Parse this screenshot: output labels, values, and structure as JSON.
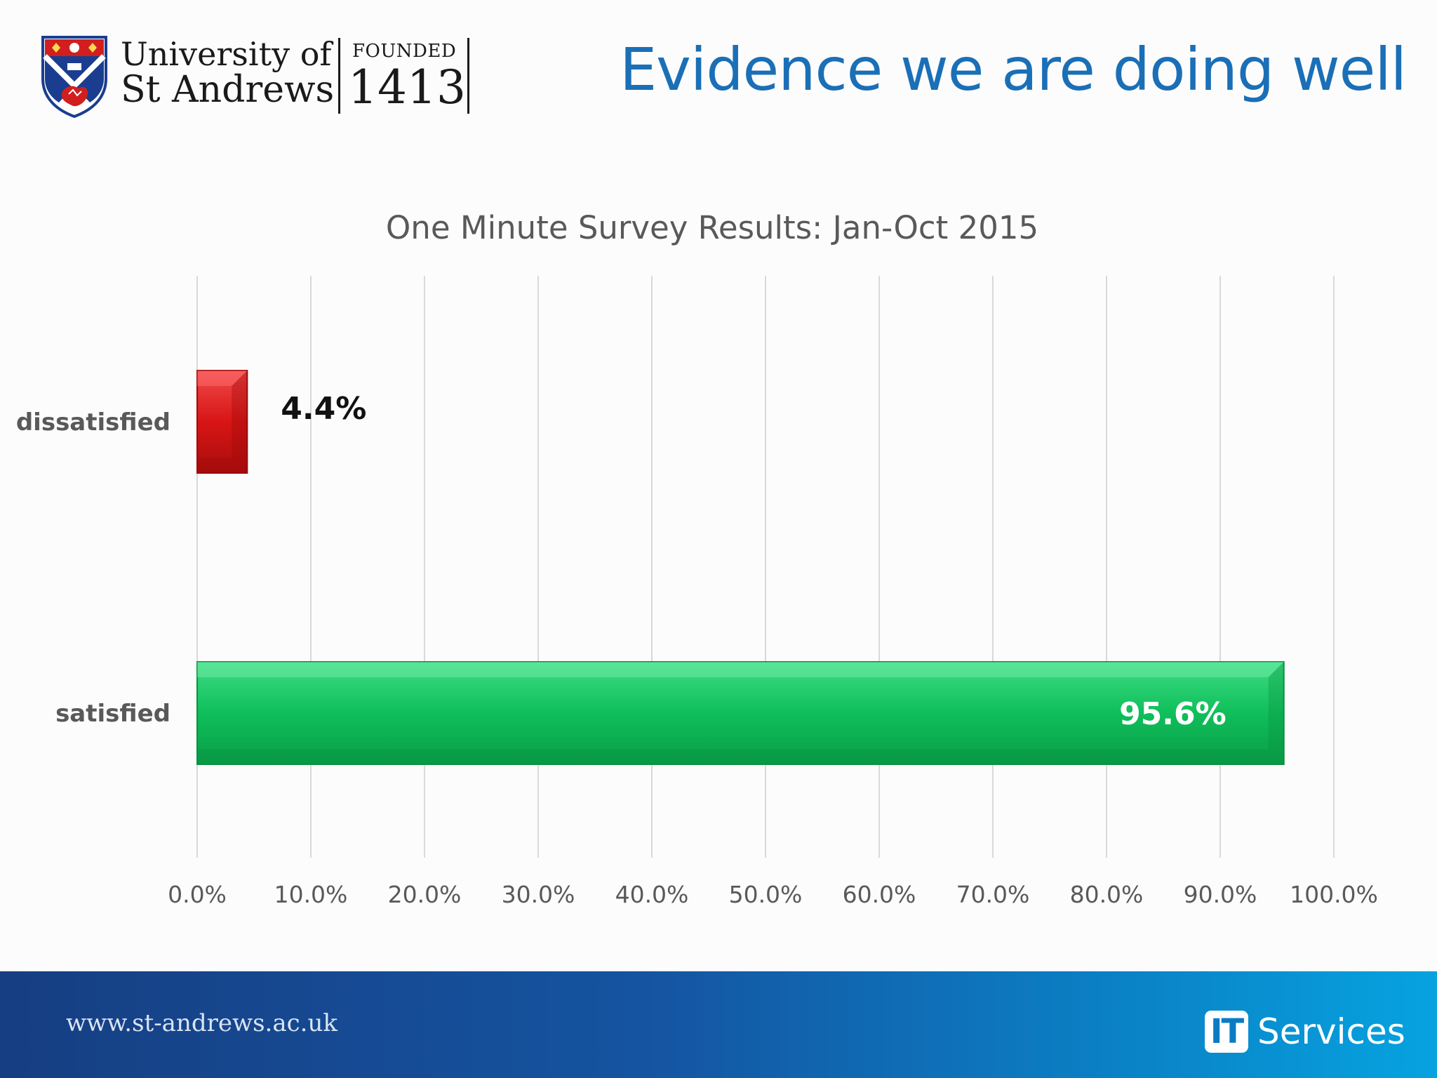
{
  "header": {
    "university_line1": "University of",
    "university_line2": "St Andrews",
    "founded_label": "FOUNDED",
    "founded_year": "1413",
    "logo_icon": "university-crest-icon",
    "slide_title": "Evidence we are doing well"
  },
  "chart_data": {
    "type": "bar",
    "orientation": "horizontal",
    "title": "One Minute Survey Results: Jan-Oct 2015",
    "categories": [
      "dissatisfied",
      "satisfied"
    ],
    "values": [
      4.4,
      95.6
    ],
    "data_labels": [
      "4.4%",
      "95.6%"
    ],
    "bar_colors": [
      "#d81515",
      "#0fbf5a"
    ],
    "xlim": [
      0,
      100
    ],
    "x_ticks": [
      0,
      10,
      20,
      30,
      40,
      50,
      60,
      70,
      80,
      90,
      100
    ],
    "x_tick_labels": [
      "0.0%",
      "10.0%",
      "20.0%",
      "30.0%",
      "40.0%",
      "50.0%",
      "60.0%",
      "70.0%",
      "80.0%",
      "90.0%",
      "100.0%"
    ],
    "grid": "vertical",
    "legend": "none",
    "xlabel": "",
    "ylabel": ""
  },
  "footer": {
    "url": "www.st-andrews.ac.uk",
    "brand_badge": "IT",
    "brand_text": "Services"
  },
  "colors": {
    "title_blue": "#1a6fb7",
    "axis_text": "#595959",
    "grid": "#d9d9d9"
  }
}
